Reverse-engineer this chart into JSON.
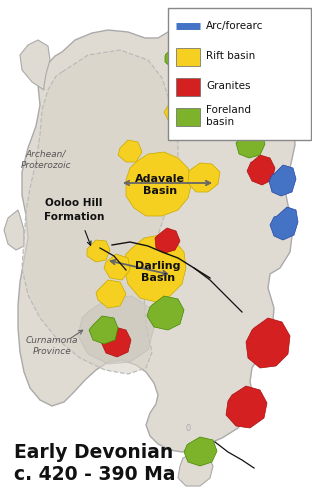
{
  "figure_width": 3.12,
  "figure_height": 5.0,
  "dpi": 100,
  "bg_color": "#ffffff",
  "colors": {
    "yellow": "#f5d020",
    "red": "#d42020",
    "green": "#7db32a",
    "blue": "#4472c4",
    "land": "#e0dbd2",
    "land_stroke": "#aaaaaa",
    "archean_fill": "#d8d3c8",
    "curnamona_fill": "#ccc8be",
    "dashed": "#bbbbbb",
    "arrow": "#666666",
    "black": "#111111",
    "label_gray": "#555555"
  },
  "title_line1": "Early Devonian",
  "title_line2": "c. 420 - 390 Ma",
  "archean_label": "Archean/\nProterozoic",
  "ooloo_label": "Ooloo Hill\nFormation",
  "adavale_label": "Adavale\nBasin",
  "darling_label": "Darling\nBasin",
  "curnamona_label": "Curnamona\nProvince"
}
